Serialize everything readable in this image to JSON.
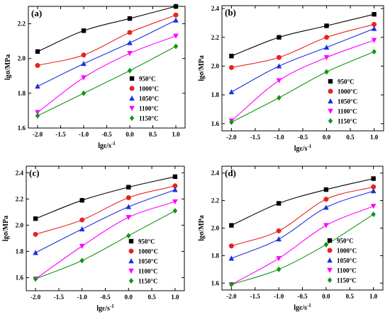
{
  "figure": {
    "x_tick_labels": [
      "-2.0",
      "-1.5",
      "-1.0",
      "-0.5",
      "0.0",
      "0.5",
      "1.0"
    ],
    "x_tick_values": [
      -2.0,
      -1.5,
      -1.0,
      -0.5,
      0.0,
      0.5,
      1.0
    ],
    "series_colors": [
      "#000000",
      "#e8231d",
      "#1a2fe0",
      "#ff00ff",
      "#119411"
    ],
    "series_markers": [
      "square",
      "circle",
      "triangle-up",
      "triangle-down",
      "diamond"
    ]
  },
  "chart_data": [
    {
      "type": "line",
      "panel_label": "(a)",
      "xlabel": "lgε/s",
      "xlabel_sup": "-1",
      "ylabel": "lgσ/MPa",
      "x": [
        -2,
        -1,
        0,
        1
      ],
      "xlim": [
        -2.2,
        1.2
      ],
      "ylim": [
        1.6,
        2.3
      ],
      "yticks": [
        1.6,
        1.8,
        2.0,
        2.2
      ],
      "ytick_labels": [
        "1.6",
        "1.8",
        "2.0",
        "2.2"
      ],
      "legend_position": "bottom-right",
      "grid": false,
      "series": [
        {
          "name": "950°C",
          "values": [
            2.04,
            2.16,
            2.23,
            2.3
          ]
        },
        {
          "name": "1000°C",
          "values": [
            1.96,
            2.02,
            2.15,
            2.25
          ]
        },
        {
          "name": "1050°C",
          "values": [
            1.84,
            1.97,
            2.09,
            2.22
          ]
        },
        {
          "name": "1100°C",
          "values": [
            1.69,
            1.89,
            2.03,
            2.13
          ]
        },
        {
          "name": "1150°C",
          "values": [
            1.67,
            1.8,
            1.93,
            2.07
          ]
        }
      ]
    },
    {
      "type": "line",
      "panel_label": "(b)",
      "xlabel": "lgε/s",
      "xlabel_sup": "-1",
      "ylabel": "lgσ/MPa",
      "x": [
        -2,
        -1,
        0,
        1
      ],
      "xlim": [
        -2.2,
        1.2
      ],
      "ylim": [
        1.55,
        2.42
      ],
      "yticks": [
        1.6,
        1.8,
        2.0,
        2.2,
        2.4
      ],
      "ytick_labels": [
        "1.6",
        "1.8",
        "2.0",
        "2.2",
        "2.4"
      ],
      "legend_position": "bottom-right",
      "grid": false,
      "series": [
        {
          "name": "950°C",
          "values": [
            2.07,
            2.2,
            2.28,
            2.36
          ]
        },
        {
          "name": "1000°C",
          "values": [
            1.99,
            2.06,
            2.2,
            2.29
          ]
        },
        {
          "name": "1050°C",
          "values": [
            1.82,
            2.0,
            2.13,
            2.26
          ]
        },
        {
          "name": "1100°C",
          "values": [
            1.62,
            1.9,
            2.06,
            2.18
          ]
        },
        {
          "name": "1150°C",
          "values": [
            1.61,
            1.78,
            1.96,
            2.1
          ]
        }
      ]
    },
    {
      "type": "line",
      "panel_label": "(c)",
      "xlabel": "lgε/s",
      "xlabel_sup": "-1",
      "ylabel": "lgσ/MPa",
      "x": [
        -2,
        -1,
        0,
        1
      ],
      "xlim": [
        -2.2,
        1.2
      ],
      "ylim": [
        1.5,
        2.45
      ],
      "yticks": [
        1.6,
        1.8,
        2.0,
        2.2,
        2.4
      ],
      "ytick_labels": [
        "1.6",
        "1.8",
        "2.0",
        "2.2",
        "2.4"
      ],
      "legend_position": "bottom-right",
      "grid": false,
      "series": [
        {
          "name": "950°C",
          "values": [
            2.05,
            2.19,
            2.29,
            2.37
          ]
        },
        {
          "name": "1000°C",
          "values": [
            1.93,
            2.04,
            2.21,
            2.3
          ]
        },
        {
          "name": "1050°C",
          "values": [
            1.79,
            1.97,
            2.14,
            2.27
          ]
        },
        {
          "name": "1100°C",
          "values": [
            1.59,
            1.84,
            2.06,
            2.18
          ]
        },
        {
          "name": "1150°C",
          "values": [
            1.59,
            1.73,
            1.92,
            2.11
          ]
        }
      ]
    },
    {
      "type": "line",
      "panel_label": "(d)",
      "xlabel": "lgε/s",
      "xlabel_sup": "-1",
      "ylabel": "lgσ/MPa",
      "x": [
        -2,
        -1,
        0,
        1
      ],
      "xlim": [
        -2.2,
        1.2
      ],
      "ylim": [
        1.55,
        2.45
      ],
      "yticks": [
        1.6,
        1.8,
        2.0,
        2.2,
        2.4
      ],
      "ytick_labels": [
        "1.6",
        "1.8",
        "2.0",
        "2.2",
        "2.4"
      ],
      "legend_position": "bottom-right",
      "grid": false,
      "series": [
        {
          "name": "950°C",
          "values": [
            2.02,
            2.18,
            2.28,
            2.36
          ]
        },
        {
          "name": "1000°C",
          "values": [
            1.87,
            1.98,
            2.21,
            2.3
          ]
        },
        {
          "name": "1050°C",
          "values": [
            1.78,
            1.92,
            2.15,
            2.27
          ]
        },
        {
          "name": "1100°C",
          "values": [
            1.59,
            1.78,
            2.02,
            2.16
          ]
        },
        {
          "name": "1150°C",
          "values": [
            1.59,
            1.7,
            1.88,
            2.1
          ]
        }
      ]
    }
  ]
}
